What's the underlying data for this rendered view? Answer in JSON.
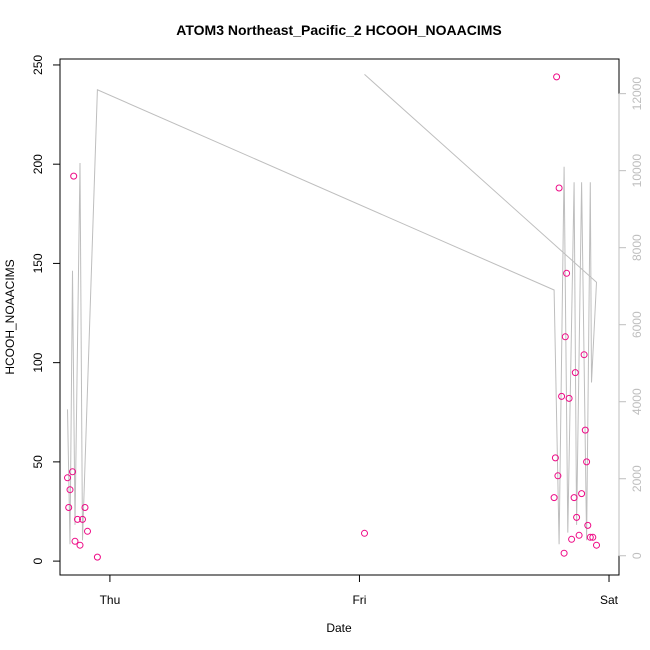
{
  "chart_data": {
    "type": "scatter",
    "title": "ATOM3 Northeast_Pacific_2 HCOOH_NOAACIMS",
    "xlabel": "Date",
    "ylabel": "HCOOH_NOAACIMS",
    "x_ticks": [
      "Thu",
      "Fri",
      "Sat"
    ],
    "xlim_days": [
      -0.2,
      2.04
    ],
    "ylim": [
      -7,
      253
    ],
    "y_ticks": [
      0,
      50,
      100,
      150,
      200,
      250
    ],
    "y2lim": [
      -500,
      12900
    ],
    "y2_ticks": [
      0,
      2000,
      4000,
      6000,
      8000,
      10000,
      12000
    ],
    "grid": false,
    "point_color": "#ee0a86",
    "line_color": "#bebebe",
    "points": [
      {
        "x": -0.17,
        "y": 42
      },
      {
        "x": -0.165,
        "y": 27
      },
      {
        "x": -0.16,
        "y": 36
      },
      {
        "x": -0.15,
        "y": 45
      },
      {
        "x": -0.145,
        "y": 194
      },
      {
        "x": -0.14,
        "y": 10
      },
      {
        "x": -0.13,
        "y": 21
      },
      {
        "x": -0.12,
        "y": 8
      },
      {
        "x": -0.11,
        "y": 21
      },
      {
        "x": -0.1,
        "y": 27
      },
      {
        "x": -0.09,
        "y": 15
      },
      {
        "x": -0.05,
        "y": 2
      },
      {
        "x": 1.02,
        "y": 14
      },
      {
        "x": 1.78,
        "y": 32
      },
      {
        "x": 1.785,
        "y": 52
      },
      {
        "x": 1.79,
        "y": 244
      },
      {
        "x": 1.795,
        "y": 43
      },
      {
        "x": 1.8,
        "y": 188
      },
      {
        "x": 1.81,
        "y": 83
      },
      {
        "x": 1.82,
        "y": 4
      },
      {
        "x": 1.825,
        "y": 113
      },
      {
        "x": 1.83,
        "y": 145
      },
      {
        "x": 1.84,
        "y": 82
      },
      {
        "x": 1.85,
        "y": 11
      },
      {
        "x": 1.86,
        "y": 32
      },
      {
        "x": 1.865,
        "y": 95
      },
      {
        "x": 1.87,
        "y": 22
      },
      {
        "x": 1.88,
        "y": 13
      },
      {
        "x": 1.89,
        "y": 34
      },
      {
        "x": 1.9,
        "y": 104
      },
      {
        "x": 1.905,
        "y": 66
      },
      {
        "x": 1.91,
        "y": 50
      },
      {
        "x": 1.915,
        "y": 18
      },
      {
        "x": 1.925,
        "y": 12
      },
      {
        "x": 1.935,
        "y": 12
      },
      {
        "x": 1.95,
        "y": 8
      }
    ],
    "line": [
      {
        "x": -0.17,
        "y2": 3800
      },
      {
        "x": -0.16,
        "y2": 300
      },
      {
        "x": -0.15,
        "y2": 7400
      },
      {
        "x": -0.14,
        "y2": 800
      },
      {
        "x": -0.12,
        "y2": 10200
      },
      {
        "x": -0.11,
        "y2": 400
      },
      {
        "x": -0.05,
        "y2": 12100
      },
      {
        "x": 1.78,
        "y2": 6900
      },
      {
        "x": 1.8,
        "y2": 300
      },
      {
        "x": 1.82,
        "y2": 10100
      },
      {
        "x": 1.835,
        "y2": 600
      },
      {
        "x": 1.86,
        "y2": 9700
      },
      {
        "x": 1.87,
        "y2": 800
      },
      {
        "x": 1.89,
        "y2": 9700
      },
      {
        "x": 1.91,
        "y2": 400
      },
      {
        "x": 1.925,
        "y2": 9700
      },
      {
        "x": 1.93,
        "y2": 4500
      },
      {
        "x": 1.95,
        "y2": 7100
      },
      {
        "x": 1.02,
        "y2": 12500
      },
      {
        "x": 1.95,
        "y2": 7100
      }
    ]
  }
}
